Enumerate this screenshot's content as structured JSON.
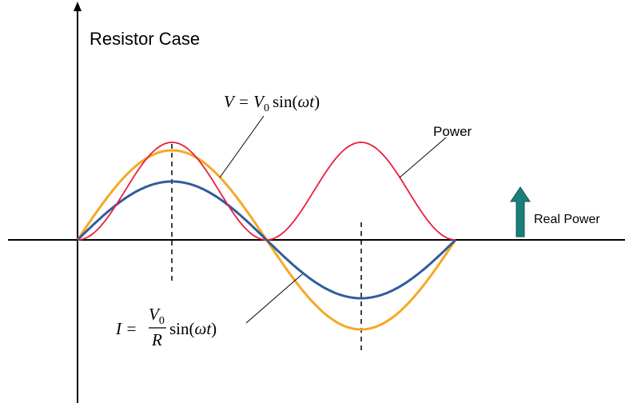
{
  "title": "Resistor Case",
  "voltage_label": {
    "lhs": "V =",
    "symbol": "V",
    "subscript": "0",
    "function": "sin(",
    "argument": "ωt",
    "close": ")"
  },
  "current_label": {
    "lhs": "I =",
    "numerator": "V",
    "subscript": "0",
    "denominator": "R",
    "function": "sin(",
    "argument": "ωt",
    "close": ")"
  },
  "power_label": "Power",
  "real_power_label": "Real Power"
}
